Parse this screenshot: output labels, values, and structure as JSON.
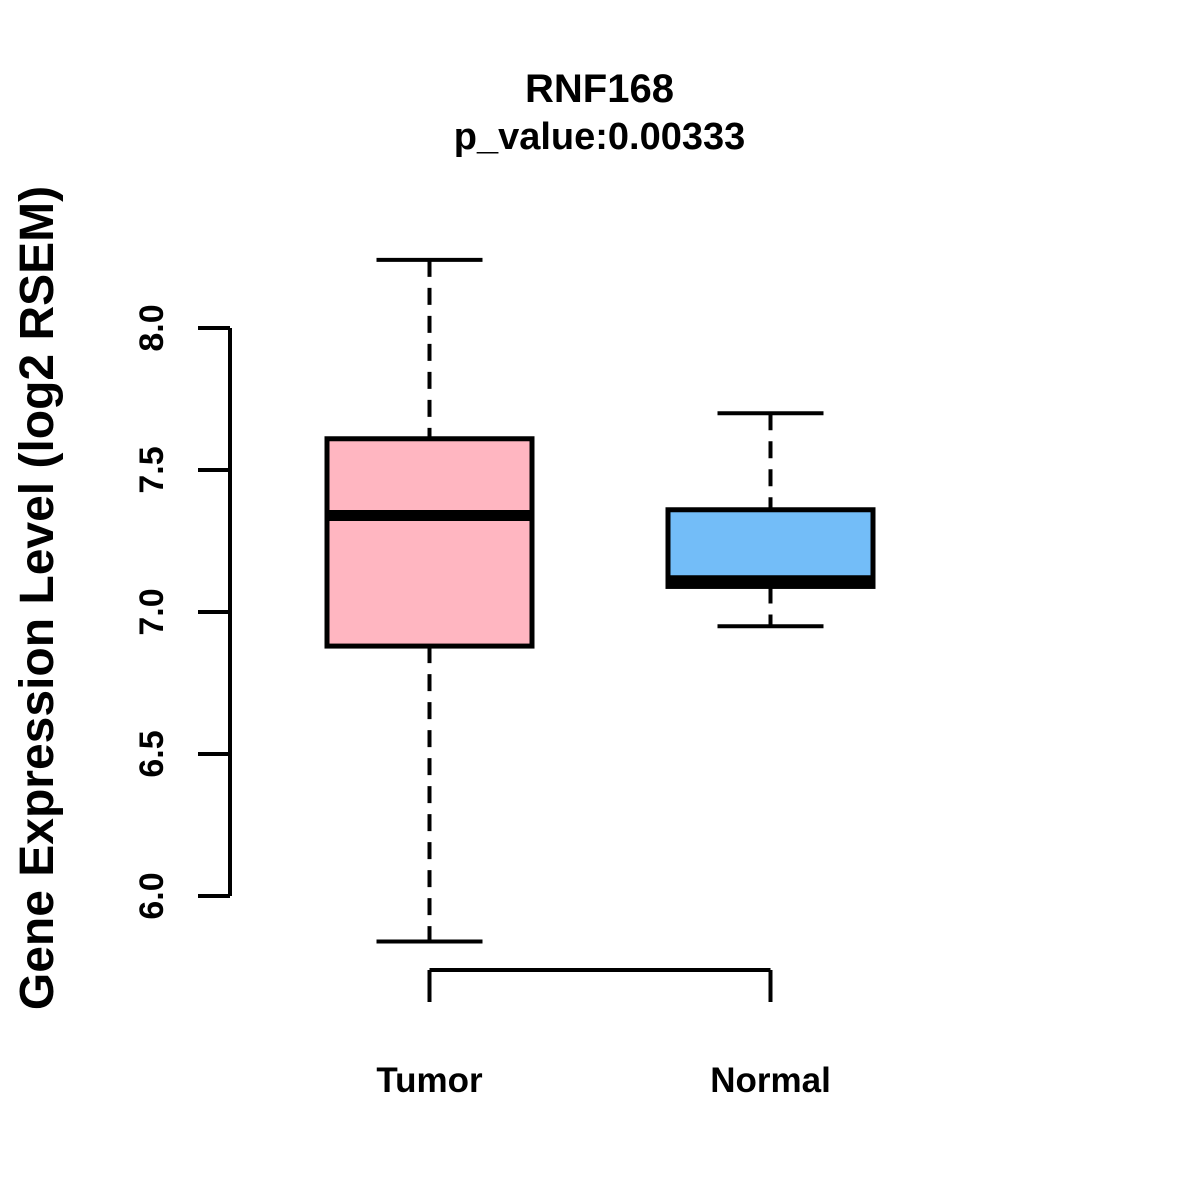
{
  "header": {
    "title": "RNF168",
    "subtitle": "p_value:0.00333"
  },
  "chart_data": {
    "type": "boxplot",
    "title": "RNF168",
    "subtitle": "p_value:0.00333",
    "ylabel": "Gene Expression Level (log2 RSEM)",
    "xlabel": "",
    "categories": [
      "Tumor",
      "Normal"
    ],
    "y_ticks": [
      "6.0",
      "6.5",
      "7.0",
      "7.5",
      "8.0"
    ],
    "y_tick_values": [
      6.0,
      6.5,
      7.0,
      7.5,
      8.0
    ],
    "ylim": [
      5.7,
      8.35
    ],
    "grid": false,
    "legend": "none",
    "whisker_style": "dashed",
    "stroke_color": "#000000",
    "background_color": "#FFFFFF",
    "series": [
      {
        "name": "Tumor",
        "fill_color": "#FFB6C1",
        "whisker_low": 5.84,
        "q1": 6.88,
        "median": 7.34,
        "q3": 7.61,
        "whisker_high": 8.24
      },
      {
        "name": "Normal",
        "fill_color": "#73BDF8",
        "whisker_low": 6.95,
        "q1": 7.09,
        "median": 7.11,
        "q3": 7.36,
        "whisker_high": 7.7
      }
    ]
  }
}
